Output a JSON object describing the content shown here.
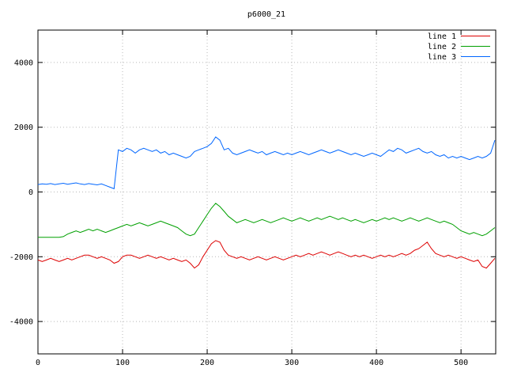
{
  "chart_data": {
    "type": "line",
    "title": "p6000_21",
    "xlabel": "",
    "ylabel": "",
    "xlim": [
      0,
      541
    ],
    "ylim": [
      -5000,
      5000
    ],
    "xticks": [
      0,
      100,
      200,
      300,
      400,
      500
    ],
    "yticks": [
      -4000,
      -2000,
      0,
      2000,
      4000
    ],
    "grid": true,
    "legend_position": "top-right",
    "grid_color": "#b8b8b8",
    "border_color": "#000000",
    "series": [
      {
        "name": "line 1",
        "color": "#dd0000",
        "x_start": 0,
        "x_step": 5,
        "values": [
          -2100,
          -2150,
          -2100,
          -2050,
          -2100,
          -2150,
          -2100,
          -2050,
          -2100,
          -2050,
          -2000,
          -1950,
          -1950,
          -2000,
          -2050,
          -2000,
          -2050,
          -2100,
          -2200,
          -2150,
          -2000,
          -1950,
          -1950,
          -2000,
          -2050,
          -2000,
          -1950,
          -2000,
          -2050,
          -2000,
          -2050,
          -2100,
          -2050,
          -2100,
          -2150,
          -2100,
          -2200,
          -2350,
          -2250,
          -2000,
          -1800,
          -1600,
          -1500,
          -1550,
          -1800,
          -1950,
          -2000,
          -2050,
          -2000,
          -2050,
          -2100,
          -2050,
          -2000,
          -2050,
          -2100,
          -2050,
          -2000,
          -2050,
          -2100,
          -2050,
          -2000,
          -1950,
          -2000,
          -1950,
          -1900,
          -1950,
          -1900,
          -1850,
          -1900,
          -1950,
          -1900,
          -1850,
          -1900,
          -1950,
          -2000,
          -1950,
          -2000,
          -1950,
          -2000,
          -2050,
          -2000,
          -1950,
          -2000,
          -1950,
          -2000,
          -1950,
          -1900,
          -1950,
          -1900,
          -1800,
          -1750,
          -1650,
          -1550,
          -1750,
          -1900,
          -1950,
          -2000,
          -1950,
          -2000,
          -2050,
          -2000,
          -2050,
          -2100,
          -2150,
          -2100,
          -2300,
          -2350,
          -2200,
          -2050
        ]
      },
      {
        "name": "line 2",
        "color": "#00a000",
        "x_start": 0,
        "x_step": 5,
        "values": [
          -1400,
          -1400,
          -1400,
          -1400,
          -1400,
          -1400,
          -1380,
          -1300,
          -1250,
          -1200,
          -1250,
          -1200,
          -1150,
          -1200,
          -1150,
          -1200,
          -1250,
          -1200,
          -1150,
          -1100,
          -1050,
          -1000,
          -1050,
          -1000,
          -950,
          -1000,
          -1050,
          -1000,
          -950,
          -900,
          -950,
          -1000,
          -1050,
          -1100,
          -1200,
          -1300,
          -1350,
          -1300,
          -1100,
          -900,
          -700,
          -500,
          -350,
          -450,
          -600,
          -750,
          -850,
          -950,
          -900,
          -850,
          -900,
          -950,
          -900,
          -850,
          -900,
          -950,
          -900,
          -850,
          -800,
          -850,
          -900,
          -850,
          -800,
          -850,
          -900,
          -850,
          -800,
          -850,
          -800,
          -750,
          -800,
          -850,
          -800,
          -850,
          -900,
          -850,
          -900,
          -950,
          -900,
          -850,
          -900,
          -850,
          -800,
          -850,
          -800,
          -850,
          -900,
          -850,
          -800,
          -850,
          -900,
          -850,
          -800,
          -850,
          -900,
          -950,
          -900,
          -950,
          -1000,
          -1100,
          -1200,
          -1250,
          -1300,
          -1250,
          -1300,
          -1350,
          -1300,
          -1200,
          -1100
        ]
      },
      {
        "name": "line 3",
        "color": "#0066ff",
        "x_start": 0,
        "x_step": 5,
        "values": [
          230,
          250,
          240,
          260,
          230,
          250,
          270,
          240,
          260,
          280,
          250,
          230,
          260,
          240,
          220,
          250,
          200,
          150,
          100,
          1300,
          1250,
          1350,
          1300,
          1200,
          1300,
          1350,
          1300,
          1250,
          1300,
          1200,
          1250,
          1150,
          1200,
          1150,
          1100,
          1050,
          1100,
          1250,
          1300,
          1350,
          1400,
          1500,
          1700,
          1600,
          1300,
          1350,
          1200,
          1150,
          1200,
          1250,
          1300,
          1250,
          1200,
          1250,
          1150,
          1200,
          1250,
          1200,
          1150,
          1200,
          1150,
          1200,
          1250,
          1200,
          1150,
          1200,
          1250,
          1300,
          1250,
          1200,
          1250,
          1300,
          1250,
          1200,
          1150,
          1200,
          1150,
          1100,
          1150,
          1200,
          1150,
          1100,
          1200,
          1300,
          1250,
          1350,
          1300,
          1200,
          1250,
          1300,
          1350,
          1250,
          1200,
          1250,
          1150,
          1100,
          1150,
          1050,
          1100,
          1050,
          1100,
          1050,
          1000,
          1050,
          1100,
          1050,
          1100,
          1200,
          1600
        ]
      }
    ]
  }
}
